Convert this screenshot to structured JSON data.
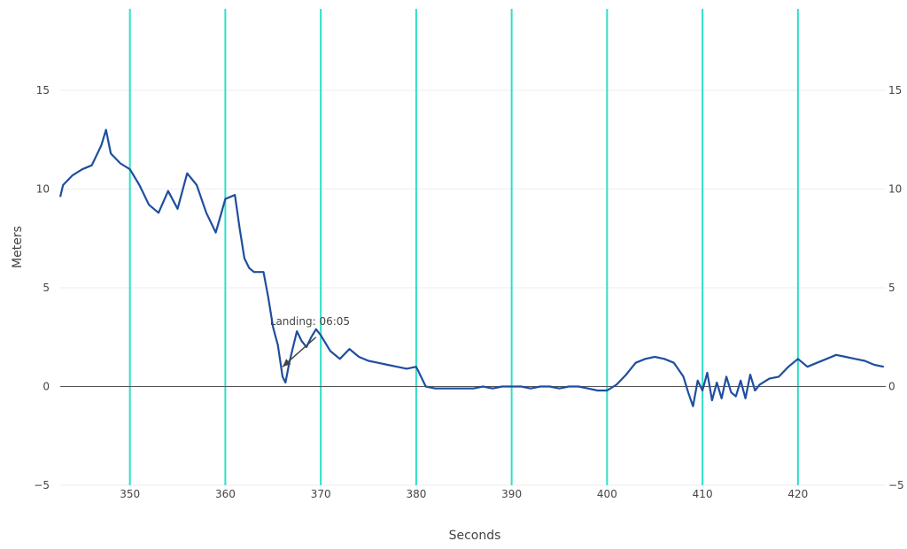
{
  "chart_data": {
    "type": "line",
    "xlabel": "Seconds",
    "ylabel": "Meters",
    "xlim": [
      342.7,
      429.2
    ],
    "ylim": [
      -5,
      18.9
    ],
    "x_ticks": [
      "350",
      "360",
      "370",
      "380",
      "390",
      "400",
      "410",
      "420"
    ],
    "y_ticks_left": [
      "15",
      "10",
      "5",
      "0",
      "−5"
    ],
    "y_ticks_right": [
      "15",
      "10",
      "5",
      "0",
      "−5"
    ],
    "y_tick_values": [
      15,
      10,
      5,
      0,
      -5
    ],
    "vertical_markers": [
      350,
      360,
      370,
      380,
      390,
      400,
      410,
      420
    ],
    "grid": true,
    "annotation": {
      "text": "Landing: 06:05",
      "x": 366,
      "y": 1,
      "arrow_tail_x": 369.5,
      "arrow_tail_y": 2.5
    },
    "series": [
      {
        "x": [
          342.7,
          343,
          344,
          345,
          346,
          347,
          347.5,
          348,
          349,
          350,
          351,
          352,
          353,
          354,
          355,
          356,
          357,
          358,
          359,
          360,
          361,
          361.5,
          362,
          362.5,
          363,
          364,
          364.5,
          365,
          365.5,
          366,
          366.3,
          366.7,
          367,
          367.5,
          368,
          368.5,
          369,
          369.5,
          370,
          371,
          372,
          373,
          374,
          375,
          376,
          377,
          378,
          379,
          380,
          381,
          382,
          383,
          384,
          385,
          386,
          387,
          388,
          389,
          390,
          391,
          392,
          393,
          394,
          395,
          396,
          397,
          398,
          399,
          400,
          401,
          402,
          403,
          404,
          405,
          406,
          407,
          408,
          408.5,
          409,
          409.5,
          410,
          410.5,
          411,
          411.5,
          412,
          412.5,
          413,
          413.5,
          414,
          414.5,
          415,
          415.5,
          416,
          417,
          418,
          419,
          420,
          421,
          422,
          423,
          424,
          425,
          426,
          427,
          428,
          429
        ],
        "y": [
          9.6,
          10.2,
          10.7,
          11.0,
          11.2,
          12.2,
          13.0,
          11.8,
          11.3,
          11.0,
          10.2,
          9.2,
          8.8,
          9.9,
          9.0,
          10.8,
          10.2,
          8.8,
          7.8,
          9.5,
          9.7,
          8.0,
          6.5,
          6.0,
          5.8,
          5.8,
          4.5,
          3.0,
          2.1,
          0.5,
          0.2,
          1.2,
          1.8,
          2.8,
          2.3,
          2.0,
          2.5,
          2.9,
          2.6,
          1.8,
          1.4,
          1.9,
          1.5,
          1.3,
          1.2,
          1.1,
          1.0,
          0.9,
          1.0,
          0.0,
          -0.1,
          -0.1,
          -0.1,
          -0.1,
          -0.1,
          0.0,
          -0.1,
          0.0,
          0.0,
          0.0,
          -0.1,
          0.0,
          0.0,
          -0.1,
          0.0,
          0.0,
          -0.1,
          -0.2,
          -0.2,
          0.1,
          0.6,
          1.2,
          1.4,
          1.5,
          1.4,
          1.2,
          0.5,
          -0.3,
          -1.0,
          0.3,
          -0.2,
          0.7,
          -0.7,
          0.2,
          -0.6,
          0.5,
          -0.3,
          -0.5,
          0.3,
          -0.6,
          0.6,
          -0.2,
          0.1,
          0.4,
          0.5,
          1.0,
          1.4,
          1.0,
          1.2,
          1.4,
          1.6,
          1.5,
          1.4,
          1.3,
          1.1,
          1.0
        ]
      }
    ]
  },
  "colors": {
    "line": "#1f4e9e",
    "markers": "#2ee0c8",
    "grid": "#eeeeee",
    "zero_line": "#555555",
    "text": "#444444"
  }
}
